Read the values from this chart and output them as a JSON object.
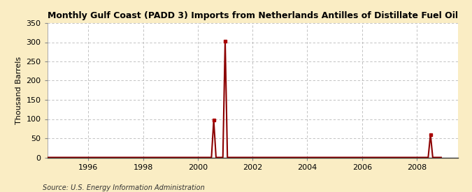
{
  "title": "Monthly Gulf Coast (PADD 3) Imports from Netherlands Antilles of Distillate Fuel Oil",
  "ylabel": "Thousand Barrels",
  "source": "Source: U.S. Energy Information Administration",
  "bg_color": "#faedc4",
  "plot_bg_color": "#ffffff",
  "line_color": "#8b0000",
  "marker_color": "#aa0000",
  "xlim_start": 1994.5,
  "xlim_end": 2009.5,
  "ylim": [
    0,
    350
  ],
  "yticks": [
    0,
    50,
    100,
    150,
    200,
    250,
    300,
    350
  ],
  "xticks": [
    1996,
    1998,
    2000,
    2002,
    2004,
    2006,
    2008
  ],
  "data": [
    [
      1994.5,
      0
    ],
    [
      1994.583,
      0
    ],
    [
      1994.667,
      0
    ],
    [
      1994.75,
      0
    ],
    [
      1994.833,
      0
    ],
    [
      1994.917,
      0
    ],
    [
      1995.0,
      0
    ],
    [
      1995.083,
      0
    ],
    [
      1995.167,
      0
    ],
    [
      1995.25,
      0
    ],
    [
      1995.333,
      0
    ],
    [
      1995.417,
      0
    ],
    [
      1995.5,
      0
    ],
    [
      1995.583,
      0
    ],
    [
      1995.667,
      0
    ],
    [
      1995.75,
      0
    ],
    [
      1995.833,
      0
    ],
    [
      1995.917,
      0
    ],
    [
      1996.0,
      0
    ],
    [
      1996.083,
      0
    ],
    [
      1996.167,
      0
    ],
    [
      1996.25,
      0
    ],
    [
      1996.333,
      0
    ],
    [
      1996.417,
      0
    ],
    [
      1996.5,
      0
    ],
    [
      1996.583,
      0
    ],
    [
      1996.667,
      0
    ],
    [
      1996.75,
      0
    ],
    [
      1996.833,
      0
    ],
    [
      1996.917,
      0
    ],
    [
      1997.0,
      0
    ],
    [
      1997.083,
      0
    ],
    [
      1997.167,
      0
    ],
    [
      1997.25,
      0
    ],
    [
      1997.333,
      0
    ],
    [
      1997.417,
      0
    ],
    [
      1997.5,
      0
    ],
    [
      1997.583,
      0
    ],
    [
      1997.667,
      0
    ],
    [
      1997.75,
      0
    ],
    [
      1997.833,
      0
    ],
    [
      1997.917,
      0
    ],
    [
      1998.0,
      0
    ],
    [
      1998.083,
      0
    ],
    [
      1998.167,
      0
    ],
    [
      1998.25,
      0
    ],
    [
      1998.333,
      0
    ],
    [
      1998.417,
      0
    ],
    [
      1998.5,
      0
    ],
    [
      1998.583,
      0
    ],
    [
      1998.667,
      0
    ],
    [
      1998.75,
      0
    ],
    [
      1998.833,
      0
    ],
    [
      1998.917,
      0
    ],
    [
      1999.0,
      0
    ],
    [
      1999.083,
      0
    ],
    [
      1999.167,
      0
    ],
    [
      1999.25,
      0
    ],
    [
      1999.333,
      0
    ],
    [
      1999.417,
      0
    ],
    [
      1999.5,
      0
    ],
    [
      1999.583,
      0
    ],
    [
      1999.667,
      0
    ],
    [
      1999.75,
      0
    ],
    [
      1999.833,
      0
    ],
    [
      1999.917,
      0
    ],
    [
      2000.0,
      0
    ],
    [
      2000.083,
      0
    ],
    [
      2000.167,
      0
    ],
    [
      2000.25,
      0
    ],
    [
      2000.333,
      0
    ],
    [
      2000.417,
      0
    ],
    [
      2000.5,
      0
    ],
    [
      2000.583,
      97
    ],
    [
      2000.667,
      0
    ],
    [
      2000.75,
      0
    ],
    [
      2000.833,
      0
    ],
    [
      2000.917,
      0
    ],
    [
      2001.0,
      303
    ],
    [
      2001.083,
      0
    ],
    [
      2001.167,
      0
    ],
    [
      2001.25,
      0
    ],
    [
      2001.333,
      0
    ],
    [
      2001.417,
      0
    ],
    [
      2001.5,
      0
    ],
    [
      2001.583,
      0
    ],
    [
      2001.667,
      0
    ],
    [
      2001.75,
      0
    ],
    [
      2001.833,
      0
    ],
    [
      2001.917,
      0
    ],
    [
      2002.0,
      0
    ],
    [
      2002.083,
      0
    ],
    [
      2002.167,
      0
    ],
    [
      2002.25,
      0
    ],
    [
      2002.333,
      0
    ],
    [
      2002.417,
      0
    ],
    [
      2002.5,
      0
    ],
    [
      2002.583,
      0
    ],
    [
      2002.667,
      0
    ],
    [
      2002.75,
      0
    ],
    [
      2002.833,
      0
    ],
    [
      2002.917,
      0
    ],
    [
      2003.0,
      0
    ],
    [
      2003.083,
      0
    ],
    [
      2003.167,
      0
    ],
    [
      2003.25,
      0
    ],
    [
      2003.333,
      0
    ],
    [
      2003.417,
      0
    ],
    [
      2003.5,
      0
    ],
    [
      2003.583,
      0
    ],
    [
      2003.667,
      0
    ],
    [
      2003.75,
      0
    ],
    [
      2003.833,
      0
    ],
    [
      2003.917,
      0
    ],
    [
      2004.0,
      0
    ],
    [
      2004.083,
      0
    ],
    [
      2004.167,
      0
    ],
    [
      2004.25,
      0
    ],
    [
      2004.333,
      0
    ],
    [
      2004.417,
      0
    ],
    [
      2004.5,
      0
    ],
    [
      2004.583,
      0
    ],
    [
      2004.667,
      0
    ],
    [
      2004.75,
      0
    ],
    [
      2004.833,
      0
    ],
    [
      2004.917,
      0
    ],
    [
      2005.0,
      0
    ],
    [
      2005.083,
      0
    ],
    [
      2005.167,
      0
    ],
    [
      2005.25,
      0
    ],
    [
      2005.333,
      0
    ],
    [
      2005.417,
      0
    ],
    [
      2005.5,
      0
    ],
    [
      2005.583,
      0
    ],
    [
      2005.667,
      0
    ],
    [
      2005.75,
      0
    ],
    [
      2005.833,
      0
    ],
    [
      2005.917,
      0
    ],
    [
      2006.0,
      0
    ],
    [
      2006.083,
      0
    ],
    [
      2006.167,
      0
    ],
    [
      2006.25,
      0
    ],
    [
      2006.333,
      0
    ],
    [
      2006.417,
      0
    ],
    [
      2006.5,
      0
    ],
    [
      2006.583,
      0
    ],
    [
      2006.667,
      0
    ],
    [
      2006.75,
      0
    ],
    [
      2006.833,
      0
    ],
    [
      2006.917,
      0
    ],
    [
      2007.0,
      0
    ],
    [
      2007.083,
      0
    ],
    [
      2007.167,
      0
    ],
    [
      2007.25,
      0
    ],
    [
      2007.333,
      0
    ],
    [
      2007.417,
      0
    ],
    [
      2007.5,
      0
    ],
    [
      2007.583,
      0
    ],
    [
      2007.667,
      0
    ],
    [
      2007.75,
      0
    ],
    [
      2007.833,
      0
    ],
    [
      2007.917,
      0
    ],
    [
      2008.0,
      0
    ],
    [
      2008.083,
      0
    ],
    [
      2008.167,
      0
    ],
    [
      2008.25,
      0
    ],
    [
      2008.333,
      0
    ],
    [
      2008.417,
      0
    ],
    [
      2008.5,
      60
    ],
    [
      2008.583,
      0
    ],
    [
      2008.667,
      0
    ],
    [
      2008.75,
      0
    ],
    [
      2008.833,
      0
    ],
    [
      2008.917,
      0
    ]
  ]
}
